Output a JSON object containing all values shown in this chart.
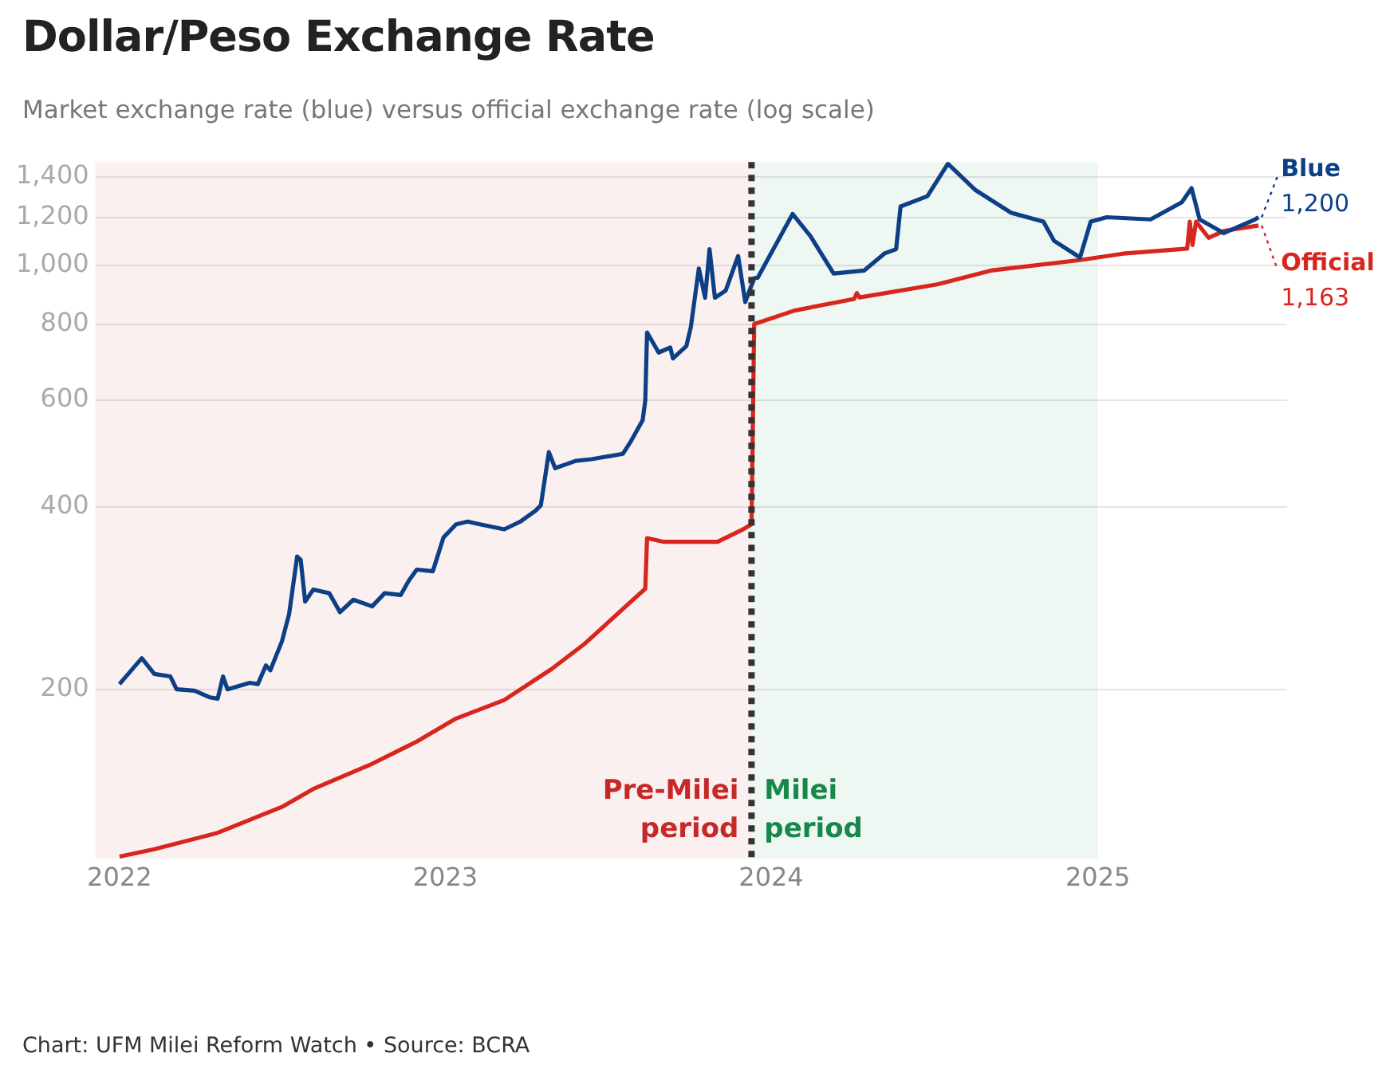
{
  "chart_data": {
    "type": "line",
    "title": "Dollar/Peso Exchange Rate",
    "subtitle": "Market exchange rate (blue) versus official exchange rate (log scale)",
    "log": "y",
    "grid": "y",
    "legend": "right",
    "marker": "none",
    "line_style": "solid",
    "xlim": [
      "2021-12-05",
      "2025-08-01"
    ],
    "xticks": [
      {
        "value": "2022-01-01",
        "label": "2022"
      },
      {
        "value": "2023-01-01",
        "label": "2023"
      },
      {
        "value": "2024-01-01",
        "label": "2024"
      },
      {
        "value": "2025-01-01",
        "label": "2025"
      }
    ],
    "ylim": [
      105,
      1480
    ],
    "yticks": [
      {
        "value": 200,
        "label": "200"
      },
      {
        "value": 400,
        "label": "400"
      },
      {
        "value": 600,
        "label": "600"
      },
      {
        "value": 800,
        "label": "800"
      },
      {
        "value": 1000,
        "label": "1,000"
      },
      {
        "value": 1200,
        "label": "1,200"
      },
      {
        "value": 1400,
        "label": "1,400"
      }
    ],
    "series": [
      {
        "name": "Blue",
        "color": "#0d3f86",
        "x": [
          "2022-01-01",
          "2022-01-19",
          "2022-01-26",
          "2022-02-09",
          "2022-02-27",
          "2022-03-06",
          "2022-03-26",
          "2022-04-12",
          "2022-04-21",
          "2022-04-27",
          "2022-05-02",
          "2022-05-27",
          "2022-06-05",
          "2022-06-14",
          "2022-06-19",
          "2022-07-02",
          "2022-07-10",
          "2022-07-19",
          "2022-07-23",
          "2022-07-28",
          "2022-08-06",
          "2022-08-24",
          "2022-09-05",
          "2022-09-20",
          "2022-10-11",
          "2022-10-25",
          "2022-11-12",
          "2022-11-21",
          "2022-11-30",
          "2022-12-18",
          "2022-12-30",
          "2023-01-13",
          "2023-01-26",
          "2023-02-09",
          "2023-03-08",
          "2023-03-26",
          "2023-04-12",
          "2023-04-18",
          "2023-04-27",
          "2023-05-04",
          "2023-05-27",
          "2023-06-14",
          "2023-07-19",
          "2023-07-28",
          "2023-08-10",
          "2023-08-13",
          "2023-08-15",
          "2023-08-28",
          "2023-09-10",
          "2023-09-13",
          "2023-09-28",
          "2023-10-03",
          "2023-10-12",
          "2023-10-19",
          "2023-10-24",
          "2023-10-30",
          "2023-11-11",
          "2023-11-25",
          "2023-12-03",
          "2023-12-13",
          "2023-12-17",
          "2024-01-25",
          "2024-02-14",
          "2024-03-11",
          "2024-04-14",
          "2024-05-07",
          "2024-05-20",
          "2024-05-25",
          "2024-06-24",
          "2024-07-17",
          "2024-08-17",
          "2024-09-26",
          "2024-11-01",
          "2024-11-13",
          "2024-12-12",
          "2024-12-24",
          "2025-01-11",
          "2025-03-01",
          "2025-04-05",
          "2025-04-16",
          "2025-04-25",
          "2025-05-22",
          "2025-06-26",
          "2025-06-30"
        ],
        "values": [
          204,
          219,
          225,
          212,
          210,
          200,
          199,
          194,
          193,
          210,
          200,
          205,
          204,
          219,
          215,
          240,
          266,
          331,
          327,
          279,
          292,
          288,
          268,
          281,
          274,
          288,
          286,
          302,
          315,
          313,
          356,
          374,
          378,
          374,
          367,
          378,
          394,
          402,
          492,
          463,
          476,
          479,
          489,
          513,
          555,
          598,
          775,
          718,
          732,
          702,
          736,
          790,
          988,
          884,
          1063,
          884,
          908,
          1036,
          870,
          952,
          954,
          1215,
          1117,
          969,
          980,
          1046,
          1063,
          1250,
          1300,
          1470,
          1330,
          1220,
          1180,
          1097,
          1030,
          1180,
          1200,
          1190,
          1270,
          1340,
          1190,
          1130,
          1190,
          1200
        ]
      },
      {
        "name": "Official",
        "color": "#d7261e",
        "x": [
          "2022-01-01",
          "2022-02-09",
          "2022-04-21",
          "2022-07-02",
          "2022-08-06",
          "2022-10-08",
          "2022-11-30",
          "2023-01-13",
          "2023-03-08",
          "2023-04-30",
          "2023-06-05",
          "2023-07-28",
          "2023-08-13",
          "2023-08-15",
          "2023-09-03",
          "2023-11-02",
          "2023-11-29",
          "2023-12-10",
          "2023-12-13",
          "2024-01-27",
          "2024-04-03",
          "2024-04-06",
          "2024-04-09",
          "2024-07-05",
          "2024-09-03",
          "2024-12-12",
          "2025-01-29",
          "2025-04-11",
          "2025-04-14",
          "2025-04-17",
          "2025-04-21",
          "2025-05-05",
          "2025-05-23",
          "2025-06-30"
        ],
        "values": [
          106,
          109,
          116,
          128,
          137,
          150,
          164,
          179,
          192,
          216,
          237,
          279,
          293,
          355,
          350,
          350,
          366,
          374,
          800,
          842,
          880,
          900,
          885,
          930,
          980,
          1020,
          1045,
          1065,
          1180,
          1080,
          1180,
          1110,
          1140,
          1163
        ]
      }
    ],
    "annotations": [
      {
        "text": "1,200",
        "x": "2025-06-30",
        "y": 1200
      },
      {
        "text": "1,163",
        "x": "2025-06-30",
        "y": 1163
      },
      "Chart: UFM Milei Reform Watch • Source: BCRA"
    ],
    "ref_lines": [
      {
        "axis": "x",
        "value": "2023-12-10",
        "color": "#333333",
        "line_style": "dotted"
      }
    ],
    "bands": [
      {
        "axis": "x",
        "from": "2021-12-05",
        "to": "2023-12-10",
        "label": "Pre-Milei period",
        "color": "#c62828"
      },
      {
        "axis": "x",
        "from": "2023-12-10",
        "to": "2025-01-01",
        "label": "Milei period",
        "color": "#17884a"
      }
    ]
  }
}
